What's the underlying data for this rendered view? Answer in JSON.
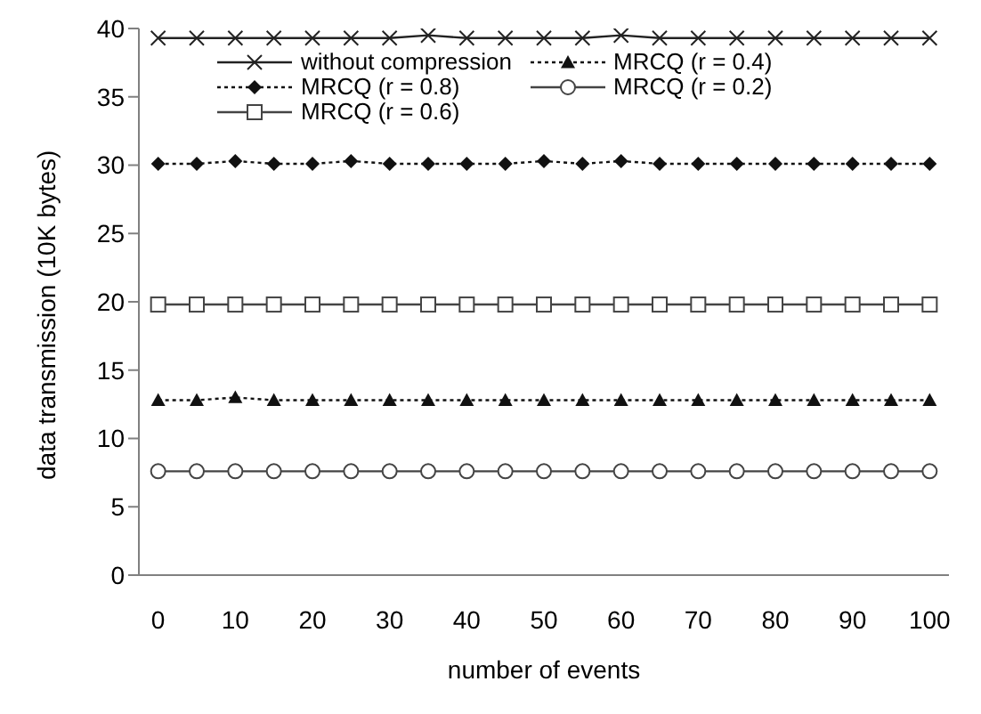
{
  "chart_data": {
    "type": "line",
    "xlabel": "number of events",
    "ylabel": "data transmission (10K bytes)",
    "x": [
      0,
      5,
      10,
      15,
      20,
      25,
      30,
      35,
      40,
      45,
      50,
      55,
      60,
      65,
      70,
      75,
      80,
      85,
      90,
      95,
      100
    ],
    "xlim": [
      -2.5,
      102.5
    ],
    "xticks": [
      0,
      10,
      20,
      30,
      40,
      50,
      60,
      70,
      80,
      90,
      100
    ],
    "ylim": [
      0,
      40
    ],
    "yticks": [
      0,
      5,
      10,
      15,
      20,
      25,
      30,
      35,
      40
    ],
    "grid": false,
    "legend": "top",
    "series": [
      {
        "name": "without compression",
        "color": "#222222",
        "marker": "cross",
        "line_style": "solid",
        "values": [
          39.3,
          39.3,
          39.3,
          39.3,
          39.3,
          39.3,
          39.3,
          39.5,
          39.3,
          39.3,
          39.3,
          39.3,
          39.5,
          39.3,
          39.3,
          39.3,
          39.3,
          39.3,
          39.3,
          39.3,
          39.3
        ]
      },
      {
        "name": "MRCQ (r = 0.4)",
        "color": "#111111",
        "marker": "triangle",
        "line_style": "dotted",
        "values": [
          12.8,
          12.8,
          13.0,
          12.8,
          12.8,
          12.8,
          12.8,
          12.8,
          12.8,
          12.8,
          12.8,
          12.8,
          12.8,
          12.8,
          12.8,
          12.8,
          12.8,
          12.8,
          12.8,
          12.8,
          12.8
        ]
      },
      {
        "name": "MRCQ (r = 0.8)",
        "color": "#111111",
        "marker": "diamond",
        "line_style": "dotted",
        "values": [
          30.1,
          30.1,
          30.3,
          30.1,
          30.1,
          30.3,
          30.1,
          30.1,
          30.1,
          30.1,
          30.3,
          30.1,
          30.3,
          30.1,
          30.1,
          30.1,
          30.1,
          30.1,
          30.1,
          30.1,
          30.1
        ]
      },
      {
        "name": "MRCQ (r = 0.2)",
        "color": "#444444",
        "marker": "circle",
        "line_style": "solid",
        "values": [
          7.6,
          7.6,
          7.6,
          7.6,
          7.6,
          7.6,
          7.6,
          7.6,
          7.6,
          7.6,
          7.6,
          7.6,
          7.6,
          7.6,
          7.6,
          7.6,
          7.6,
          7.6,
          7.6,
          7.6,
          7.6
        ]
      },
      {
        "name": "MRCQ (r = 0.6)",
        "color": "#444444",
        "marker": "square",
        "line_style": "solid",
        "values": [
          19.8,
          19.8,
          19.8,
          19.8,
          19.8,
          19.8,
          19.8,
          19.8,
          19.8,
          19.8,
          19.8,
          19.8,
          19.8,
          19.8,
          19.8,
          19.8,
          19.8,
          19.8,
          19.8,
          19.8,
          19.8
        ]
      }
    ]
  }
}
